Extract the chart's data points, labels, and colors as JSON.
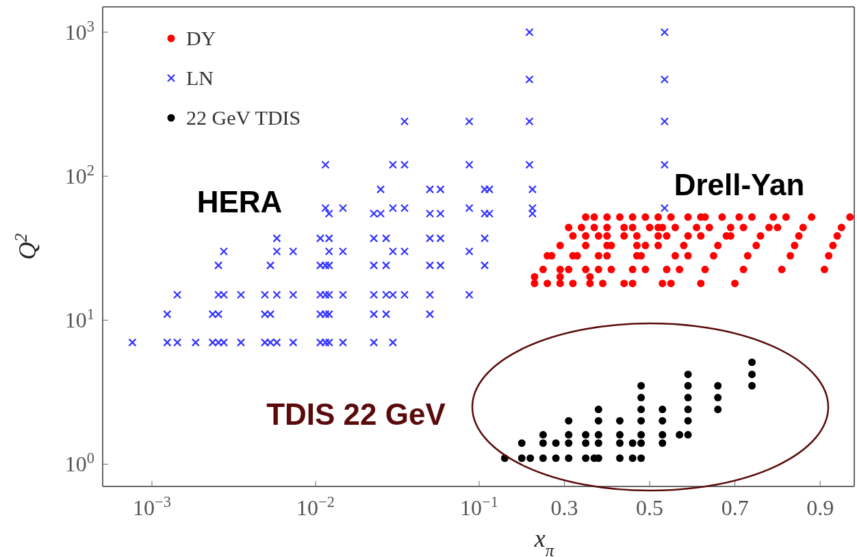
{
  "chart_data": [
    {
      "type": "scatter",
      "ylabel": "Q$^{2}$",
      "log": "xy",
      "xlim": [
        0.0005,
        0.1
      ],
      "ylim": [
        0.7,
        1500
      ],
      "xticks": [
        {
          "value": 0.001,
          "label": "10$^{−3}$"
        },
        {
          "value": 0.01,
          "label": "10$^{−2}$"
        },
        {
          "value": 0.1,
          "label": "10$^{−1}$"
        }
      ],
      "yticks": [
        {
          "value": 1,
          "label": "10$^{0}$"
        },
        {
          "value": 10,
          "label": "10$^{1}$"
        },
        {
          "value": 100,
          "label": "10$^{2}$"
        },
        {
          "value": 1000,
          "label": "10$^{3}$"
        }
      ],
      "grid": false,
      "annotations": [
        "HERA",
        "TDIS 22 GeV"
      ],
      "series": [
        {
          "color": "#3333ff",
          "marker": "cross",
          "x": [
            0.00076,
            0.00124,
            0.00124,
            0.00143,
            0.00143,
            0.00185,
            0.00235,
            0.00235,
            0.00255,
            0.00255,
            0.00255,
            0.00255,
            0.00275,
            0.00275,
            0.00275,
            0.0035,
            0.0035,
            0.0049,
            0.0049,
            0.0049,
            0.0053,
            0.0053,
            0.0053,
            0.0058,
            0.0058,
            0.0058,
            0.0058,
            0.0073,
            0.0073,
            0.0073,
            0.0107,
            0.0107,
            0.0107,
            0.0107,
            0.0107,
            0.0115,
            0.0115,
            0.0115,
            0.0115,
            0.0115,
            0.0115,
            0.0121,
            0.0121,
            0.0121,
            0.0121,
            0.0121,
            0.0121,
            0.0121,
            0.0147,
            0.0147,
            0.0147,
            0.0147,
            0.0227,
            0.0227,
            0.0227,
            0.0227,
            0.0227,
            0.0227,
            0.025,
            0.025,
            0.027,
            0.027,
            0.027,
            0.027,
            0.0297,
            0.0297,
            0.0297,
            0.0297,
            0.0297,
            0.035,
            0.035,
            0.035,
            0.035,
            0.035,
            0.05,
            0.05,
            0.05,
            0.05,
            0.05,
            0.05,
            0.058,
            0.058,
            0.058,
            0.058,
            0.087,
            0.087,
            0.087,
            0.087,
            0.087
          ],
          "values": [
            7,
            7,
            11,
            7,
            15,
            7,
            7,
            11,
            7,
            11,
            15,
            24,
            7,
            15,
            30,
            7,
            15,
            7,
            11,
            15,
            7,
            11,
            24,
            7,
            15,
            30,
            37,
            7,
            15,
            30,
            7,
            11,
            15,
            24,
            37,
            7,
            11,
            15,
            24,
            60,
            120,
            7,
            11,
            15,
            24,
            30,
            37,
            55,
            7,
            15,
            30,
            60,
            7,
            11,
            15,
            24,
            37,
            55,
            55,
            81,
            11,
            15,
            24,
            37,
            7,
            15,
            30,
            60,
            120,
            15,
            30,
            60,
            120,
            240,
            11,
            15,
            24,
            37,
            55,
            81,
            24,
            37,
            55,
            81,
            15,
            30,
            60,
            120,
            240
          ]
        }
      ]
    },
    {
      "type": "scatter",
      "xlabel": "x$_{π}$",
      "xlim": [
        0.1,
        0.98
      ],
      "ylim": [
        0.7,
        1500
      ],
      "log": "y",
      "tick_labels": "x",
      "xticks": [
        0.3,
        0.5,
        0.7,
        0.9
      ],
      "grid": false,
      "legend": "top left",
      "annotations": [
        "Drell-Yan"
      ],
      "series": [
        {
          "name": "DY",
          "color": "#ff0000",
          "marker": "circle",
          "x": [
            0.23,
            0.26,
            0.29,
            0.32,
            0.36,
            0.39,
            0.44,
            0.46,
            0.53,
            0.55,
            0.62,
            0.7,
            0.23,
            0.29,
            0.36,
            0.25,
            0.29,
            0.31,
            0.35,
            0.38,
            0.41,
            0.46,
            0.49,
            0.54,
            0.57,
            0.63,
            0.72,
            0.81,
            0.91,
            0.26,
            0.27,
            0.32,
            0.33,
            0.38,
            0.4,
            0.47,
            0.48,
            0.56,
            0.59,
            0.65,
            0.73,
            0.83,
            0.92,
            0.29,
            0.35,
            0.4,
            0.41,
            0.47,
            0.49,
            0.52,
            0.58,
            0.66,
            0.75,
            0.84,
            0.93,
            0.32,
            0.35,
            0.38,
            0.4,
            0.44,
            0.47,
            0.52,
            0.54,
            0.59,
            0.62,
            0.68,
            0.69,
            0.76,
            0.85,
            0.94,
            0.31,
            0.34,
            0.37,
            0.4,
            0.44,
            0.46,
            0.5,
            0.52,
            0.53,
            0.56,
            0.61,
            0.64,
            0.69,
            0.72,
            0.78,
            0.8,
            0.86,
            0.95,
            0.35,
            0.37,
            0.4,
            0.43,
            0.46,
            0.49,
            0.52,
            0.55,
            0.59,
            0.62,
            0.63,
            0.67,
            0.71,
            0.74,
            0.79,
            0.82,
            0.88,
            0.97
          ],
          "values": [
            18,
            18,
            18,
            18,
            18,
            18,
            18,
            18,
            18,
            18,
            18,
            18,
            20,
            20,
            20,
            22.5,
            22.5,
            22.5,
            22.5,
            22.5,
            22.5,
            22.5,
            22.5,
            22.5,
            22.5,
            22.5,
            22.5,
            22.5,
            22.5,
            28,
            28,
            28,
            28,
            28,
            28,
            28,
            28,
            28,
            28,
            28,
            28,
            28,
            28,
            33,
            33,
            33,
            33,
            33,
            33,
            33,
            33,
            33,
            33,
            33,
            33,
            38.5,
            38.5,
            38.5,
            38.5,
            38.5,
            38.5,
            38.5,
            38.5,
            38.5,
            38.5,
            38.5,
            38.5,
            38.5,
            38.5,
            38.5,
            44,
            44,
            44,
            44,
            44,
            44,
            44,
            44,
            44,
            44,
            44,
            44,
            44,
            44,
            44,
            44,
            44,
            44,
            52,
            52,
            52,
            52,
            52,
            52,
            52,
            52,
            52,
            52,
            52,
            52,
            52,
            52,
            52,
            52,
            52,
            52
          ]
        },
        {
          "name": "LN",
          "color": "#3333ff",
          "marker": "cross",
          "x": [
            0.113,
            0.113,
            0.113,
            0.113,
            0.124,
            0.124,
            0.218,
            0.218,
            0.218,
            0.218,
            0.225,
            0.225,
            0.225,
            0.535,
            0.535,
            0.535,
            0.535,
            0.535
          ],
          "values": [
            24,
            37,
            55,
            81,
            55,
            81,
            120,
            240,
            470,
            1000,
            55,
            60,
            81,
            60,
            120,
            240,
            470,
            1000
          ]
        },
        {
          "name": "22 GeV TDIS",
          "color": "#000000",
          "marker": "circle",
          "x": [
            0.16,
            0.2,
            0.2,
            0.22,
            0.25,
            0.25,
            0.25,
            0.28,
            0.28,
            0.31,
            0.31,
            0.31,
            0.31,
            0.35,
            0.35,
            0.35,
            0.37,
            0.38,
            0.38,
            0.38,
            0.38,
            0.38,
            0.43,
            0.43,
            0.43,
            0.43,
            0.46,
            0.46,
            0.48,
            0.48,
            0.48,
            0.48,
            0.48,
            0.48,
            0.48,
            0.53,
            0.53,
            0.53,
            0.53,
            0.57,
            0.59,
            0.59,
            0.59,
            0.59,
            0.59,
            0.59,
            0.66,
            0.66,
            0.66,
            0.74,
            0.74,
            0.74
          ],
          "values": [
            1.1,
            1.1,
            1.4,
            1.1,
            1.1,
            1.4,
            1.6,
            1.1,
            1.4,
            1.1,
            1.4,
            1.6,
            2.0,
            1.1,
            1.4,
            1.6,
            1.1,
            1.1,
            1.4,
            1.6,
            2.0,
            2.4,
            1.1,
            1.4,
            1.6,
            2.0,
            1.1,
            1.4,
            1.1,
            1.4,
            1.6,
            2.0,
            2.4,
            2.9,
            3.5,
            1.4,
            1.6,
            2.0,
            2.4,
            1.6,
            1.6,
            2.0,
            2.4,
            2.9,
            3.5,
            4.2,
            2.4,
            2.9,
            3.5,
            3.5,
            4.2,
            5.1
          ]
        }
      ]
    }
  ]
}
